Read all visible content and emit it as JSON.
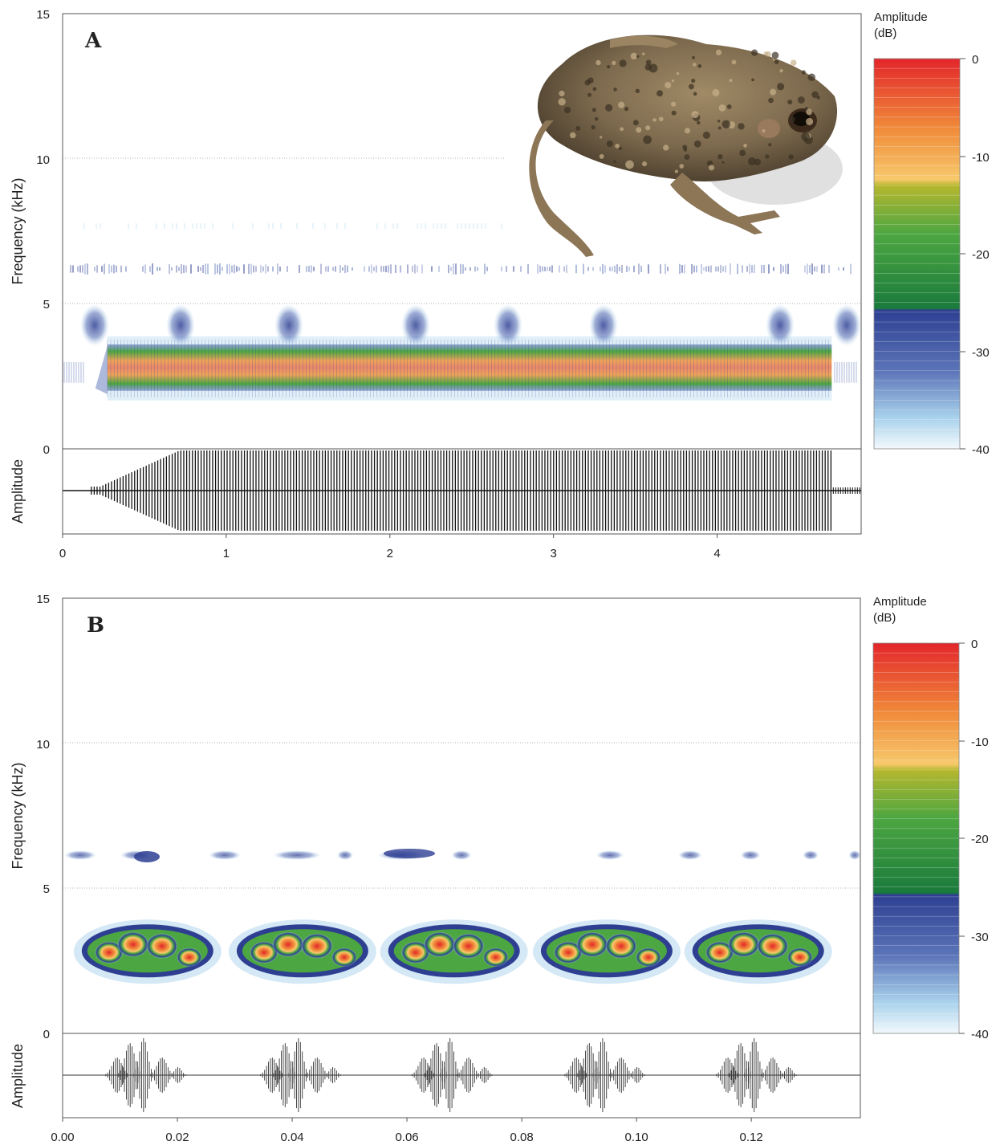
{
  "chart_data": [
    {
      "type": "heatmap",
      "panel_label": "A",
      "kind": "spectrogram + oscillogram",
      "xlim": [
        0,
        4.88
      ],
      "xticks": [
        "0",
        "1",
        "2",
        "3",
        "4"
      ],
      "ylabel": "Frequency (kHz)",
      "ylim": [
        0,
        15
      ],
      "yticks": [
        "0",
        "5",
        "10",
        "15"
      ],
      "grid_y": [
        5,
        10
      ],
      "osc_ylabel": "Amplitude",
      "colorbar": {
        "title_line1": "Amplitude",
        "title_line2": "(dB)",
        "range": [
          -40,
          0
        ],
        "ticks": [
          "0",
          "-10",
          "-20",
          "-30",
          "-40"
        ]
      },
      "dominant_band_khz": [
        2.0,
        3.6
      ],
      "call_start_s": 0.2,
      "call_end_s": 4.7,
      "harmonic_khz": 6.2,
      "has_photo": true,
      "photo_subject": "toad"
    },
    {
      "type": "heatmap",
      "panel_label": "B",
      "kind": "spectrogram + oscillogram",
      "xlim": [
        0,
        0.139
      ],
      "xticks": [
        "0.00",
        "0.02",
        "0.04",
        "0.06",
        "0.08",
        "0.10",
        "0.12"
      ],
      "ylabel": "Frequency (kHz)",
      "ylim": [
        0,
        15
      ],
      "yticks": [
        "0",
        "5",
        "10",
        "15"
      ],
      "grid_y": [
        5,
        10
      ],
      "osc_ylabel": "Amplitude",
      "colorbar": {
        "title_line1": "Amplitude",
        "title_line2": "(dB)",
        "range": [
          -40,
          0
        ],
        "ticks": [
          "0",
          "-10",
          "-20",
          "-30",
          "-40"
        ]
      },
      "pulse_centers_s": [
        0.0148,
        0.0418,
        0.0682,
        0.0948,
        0.1212
      ],
      "pulse_peak_khz": 2.9,
      "harmonic_khz": 6.2
    }
  ],
  "colors": {
    "scale_stops": [
      "#ffffff",
      "#a9d2ec",
      "#5b74b8",
      "#2e3f92",
      "#1a7a3c",
      "#4ca641",
      "#b6b72e",
      "#f7c96c",
      "#f08b3a",
      "#e3262b"
    ]
  }
}
